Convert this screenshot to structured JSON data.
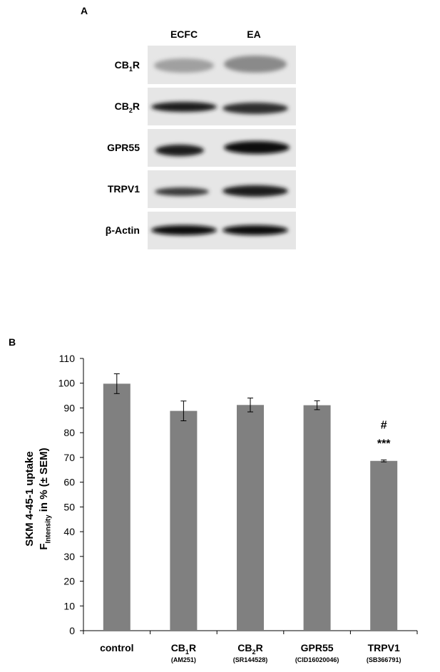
{
  "blot": {
    "panel_label": "A",
    "columns": [
      "ECFC",
      "EA"
    ],
    "rows": [
      [
        "CB",
        "1",
        "R"
      ],
      [
        "CB",
        "2",
        "R"
      ],
      [
        "GPR55"
      ],
      [
        "TRPV1"
      ],
      [
        "β-Actin"
      ]
    ]
  },
  "chart_data": {
    "type": "bar",
    "panel_label": "B",
    "y_label_lines": [
      [
        "SKM 4-45-1 uptake"
      ],
      [
        "F",
        "Intensity",
        " in % (± SEM)"
      ]
    ],
    "categories": [
      [
        "control"
      ],
      [
        "CB",
        "1",
        "R"
      ],
      [
        "CB",
        "2",
        "R"
      ],
      [
        "GPR55"
      ],
      [
        "TRPV1"
      ]
    ],
    "category_notes": [
      null,
      "(AM251)",
      "(SR144528)",
      "(CID16020046)",
      "(SB366791)"
    ],
    "values": [
      99.8,
      88.8,
      91.2,
      91.1,
      68.6
    ],
    "errors": [
      4,
      4,
      2.8,
      1.8,
      0.4
    ],
    "annotations": [
      "#",
      "***"
    ],
    "color": "#808080",
    "ylim": [
      0,
      110
    ],
    "yticks": [
      0,
      10,
      20,
      30,
      40,
      50,
      60,
      70,
      80,
      90,
      100,
      110
    ],
    "grid": false
  }
}
